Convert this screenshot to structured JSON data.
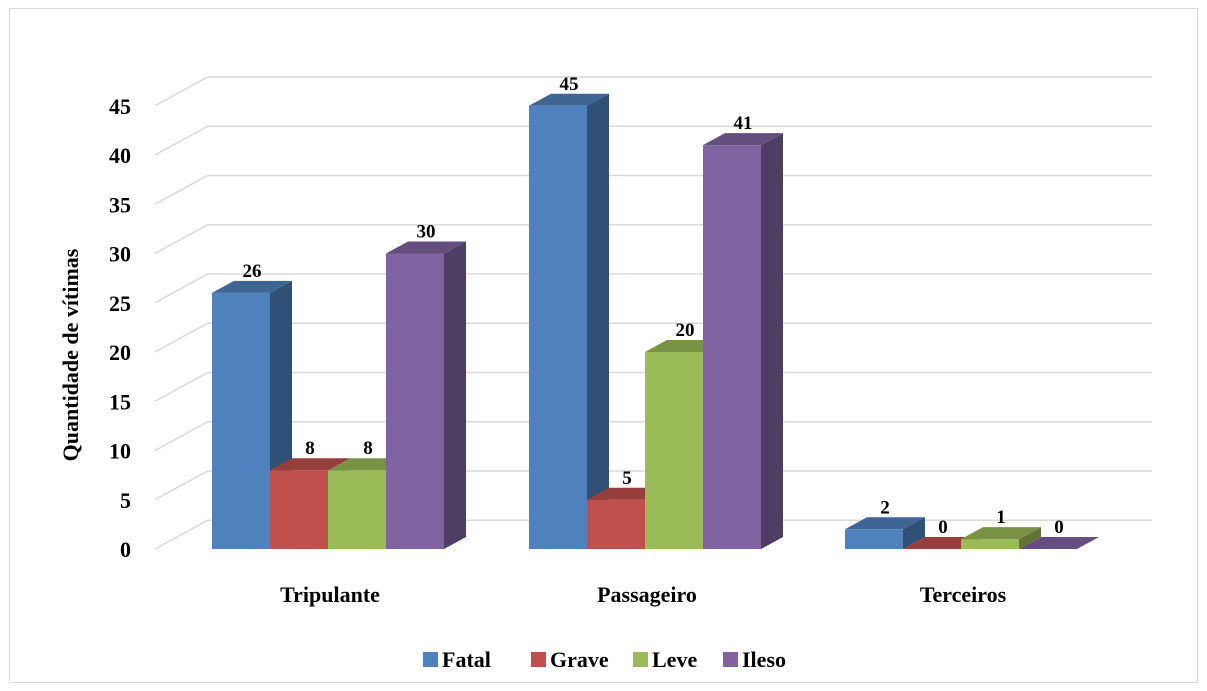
{
  "chart_data": {
    "type": "bar",
    "categories": [
      "Tripulante",
      "Passageiro",
      "Terceiros"
    ],
    "series": [
      {
        "name": "Fatal",
        "values": [
          26,
          45,
          2
        ],
        "color": "#4F81BD"
      },
      {
        "name": "Grave",
        "values": [
          8,
          5,
          0
        ],
        "color": "#C0504D"
      },
      {
        "name": "Leve",
        "values": [
          8,
          20,
          1
        ],
        "color": "#9BBB59"
      },
      {
        "name": "Ileso",
        "values": [
          30,
          41,
          0
        ],
        "color": "#8064A2"
      }
    ],
    "title": "",
    "xlabel": "",
    "ylabel": "Quantidade de vítimas",
    "ylim": [
      0,
      45
    ],
    "yticks": [
      0,
      5,
      10,
      15,
      20,
      25,
      30,
      35,
      40,
      45
    ],
    "grid": true,
    "legend": "bottom",
    "style": "3d-column"
  }
}
